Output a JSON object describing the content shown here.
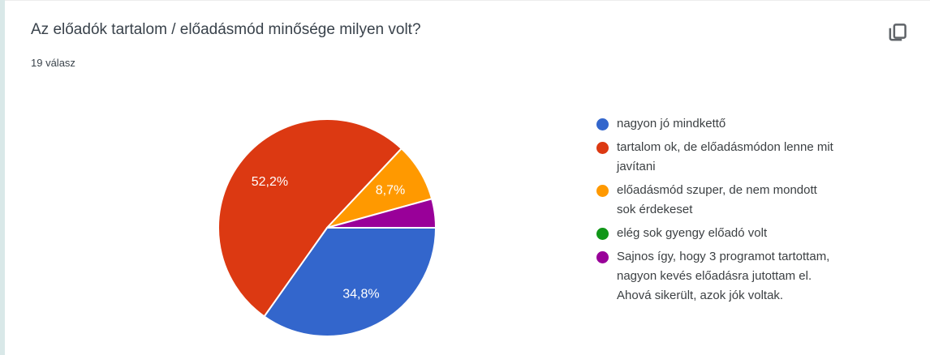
{
  "header": {
    "title": "Az előadók tartalom / előadásmód minősége milyen volt?",
    "responses_count": "19 válasz"
  },
  "toolbar": {
    "copy_icon": "copy-chart-icon",
    "icon_color": "#5f6368"
  },
  "chart_data": {
    "type": "pie",
    "title": "Az előadók tartalom / előadásmód minősége milyen volt?",
    "responses": 19,
    "start_angle_deg": 90,
    "legend_position": "right",
    "label_radius_factor": 0.68,
    "slices": [
      {
        "label": "nagyon jó mindkettő",
        "lines": [
          "nagyon jó mindkettő"
        ],
        "percent": 34.8,
        "percent_display": "34,8%",
        "color": "#3366CC",
        "show_label": true
      },
      {
        "label": "tartalom ok, de előadásmódon lenne mit javítani",
        "lines": [
          "tartalom ok, de előadásmódon lenne mit",
          "javítani"
        ],
        "percent": 52.2,
        "percent_display": "52,2%",
        "color": "#DC3912",
        "show_label": true
      },
      {
        "label": "előadásmód szuper, de nem mondott sok érdekeset",
        "lines": [
          "előadásmód szuper, de nem mondott",
          "sok érdekeset"
        ],
        "percent": 8.7,
        "percent_display": "8,7%",
        "color": "#FF9900",
        "show_label": true
      },
      {
        "label": "elég sok gyengy előadó volt",
        "lines": [
          "elég sok gyengy előadó volt"
        ],
        "percent": 0,
        "color": "#109618",
        "show_label": false
      },
      {
        "label": "Sajnos így, hogy 3 programot tartottam, nagyon kevés előadásra jutottam el. Ahová sikerült, azok jók voltak.",
        "lines": [
          "Sajnos így, hogy 3 programot tartottam,",
          "nagyon kevés előadásra jutottam el.",
          "Ahová sikerült, azok jók voltak."
        ],
        "percent": 4.3,
        "color": "#990099",
        "show_label": false
      }
    ]
  }
}
